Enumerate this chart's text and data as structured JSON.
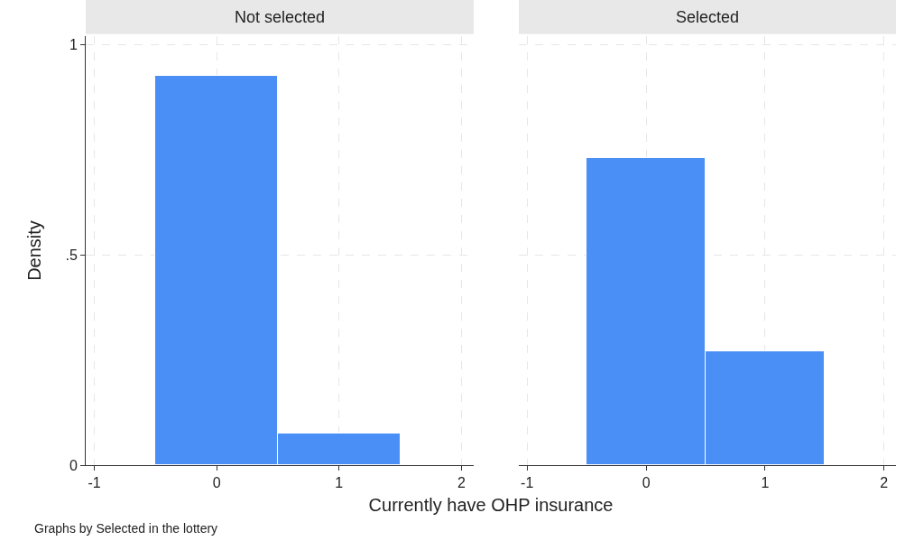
{
  "chart_data": [
    {
      "type": "histogram",
      "title": "Not selected",
      "xlabel": "Currently have OHP insurance",
      "ylabel": "Density",
      "annotations": [
        "Graphs by Selected in the lottery"
      ],
      "bins": [
        -0.5,
        0.5,
        1.5
      ],
      "values": [
        0.925,
        0.075
      ],
      "color": "#4a8ff5",
      "xlim": [
        -1.07,
        2.1
      ],
      "xticks": [
        {
          "value": -1,
          "label": "-1"
        },
        0,
        1,
        2
      ],
      "ylim": [
        0,
        1.02
      ],
      "yticks": [
        0,
        {
          "value": 0.5,
          "label": ".5"
        },
        1
      ],
      "grid": true
    },
    {
      "type": "histogram",
      "title": "Selected",
      "bins": [
        -0.5,
        0.5,
        1.5
      ],
      "values": [
        0.73,
        0.27
      ],
      "color": "#4a8ff5",
      "xlim": [
        -1.07,
        2.1
      ],
      "xticks": [
        {
          "value": -1,
          "label": "-1"
        },
        0,
        1,
        2
      ],
      "ylim": [
        0,
        1.02
      ],
      "yticks": [
        0,
        0.5,
        1
      ],
      "grid": true,
      "tick_labels": "x"
    }
  ]
}
